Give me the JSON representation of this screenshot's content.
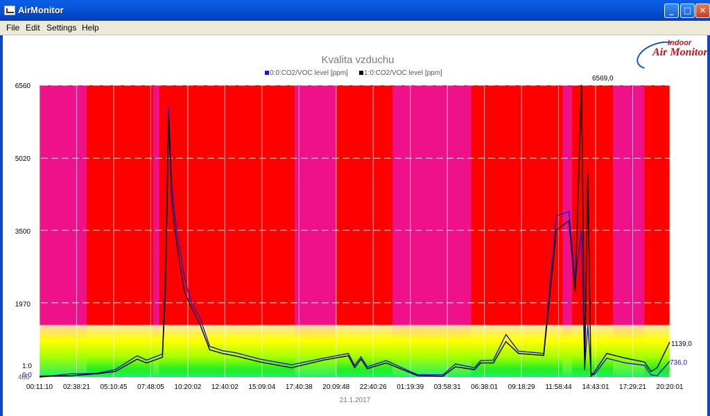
{
  "window": {
    "title": "AirMonitor"
  },
  "menu": [
    "File",
    "Edit",
    "Settings",
    "Help"
  ],
  "logo": {
    "small": "Indoor",
    "big": "Air Monitor"
  },
  "chart_data": {
    "type": "line",
    "title": "Kvalita vzduchu",
    "xlabel": "21.1.2017",
    "ylim": [
      400,
      6560
    ],
    "yticks": [
      "6560",
      "5020",
      "3500",
      "1970"
    ],
    "ytick_values": [
      6560,
      5020,
      3500,
      1970
    ],
    "xticks": [
      "00:11:10",
      "02:38:21",
      "05:10:45",
      "07:48:05",
      "10:20:02",
      "12:40:02",
      "15:09:04",
      "17:40:38",
      "20:09:48",
      "22:40:26",
      "01:19:39",
      "03:58:31",
      "06:38:01",
      "09:18:29",
      "11:58:44",
      "14:43:01",
      "17:29:21",
      "20:20:01"
    ],
    "legend": [
      "0:0:CO2/VOC level [ppm]",
      "1:0:CO2/VOC level [ppm]"
    ],
    "left_labels": [
      "1:0",
      "0:0",
      "400"
    ],
    "annotations": {
      "peak": "6569,0",
      "end_black": "1139,0",
      "end_blue": "736,0"
    },
    "colors": {
      "blue": "#1a14e0",
      "black": "#000000",
      "pink": "#ee1188",
      "red": "#ff0000"
    },
    "series": [
      {
        "name": "0:0:CO2/VOC level [ppm]",
        "x": [
          0,
          0.05,
          0.09,
          0.12,
          0.155,
          0.17,
          0.195,
          0.2,
          0.205,
          0.21,
          0.215,
          0.22,
          0.23,
          0.24,
          0.255,
          0.27,
          0.29,
          0.31,
          0.35,
          0.4,
          0.45,
          0.49,
          0.5,
          0.51,
          0.52,
          0.55,
          0.6,
          0.64,
          0.66,
          0.69,
          0.7,
          0.72,
          0.74,
          0.76,
          0.8,
          0.82,
          0.84,
          0.85,
          0.86,
          0.865,
          0.87,
          0.875,
          0.88,
          0.9,
          0.93,
          0.96,
          0.97,
          0.98,
          1.0
        ],
        "y": [
          400,
          470,
          480,
          560,
          850,
          760,
          890,
          2600,
          6100,
          4400,
          3800,
          3300,
          2500,
          2000,
          1640,
          1050,
          960,
          920,
          780,
          660,
          800,
          900,
          650,
          830,
          620,
          750,
          450,
          450,
          680,
          600,
          750,
          760,
          1300,
          950,
          900,
          3800,
          3900,
          2400,
          3500,
          600,
          1500,
          500,
          450,
          800,
          700,
          650,
          450,
          430,
          736
        ]
      },
      {
        "name": "1:0:CO2/VOC level [ppm]",
        "x": [
          0,
          0.05,
          0.09,
          0.12,
          0.155,
          0.17,
          0.195,
          0.2,
          0.205,
          0.21,
          0.215,
          0.22,
          0.23,
          0.24,
          0.255,
          0.27,
          0.29,
          0.31,
          0.35,
          0.4,
          0.45,
          0.49,
          0.5,
          0.51,
          0.52,
          0.55,
          0.6,
          0.64,
          0.66,
          0.69,
          0.7,
          0.72,
          0.74,
          0.76,
          0.8,
          0.82,
          0.84,
          0.85,
          0.86,
          0.865,
          0.87,
          0.875,
          0.88,
          0.9,
          0.93,
          0.96,
          0.97,
          0.98,
          1.0
        ],
        "y": [
          420,
          430,
          470,
          520,
          780,
          700,
          820,
          2300,
          5900,
          4100,
          3500,
          3000,
          2200,
          1900,
          1500,
          980,
          900,
          850,
          720,
          600,
          760,
          850,
          600,
          780,
          580,
          700,
          430,
          420,
          620,
          560,
          700,
          700,
          1150,
          900,
          860,
          3500,
          3700,
          2200,
          6569,
          550,
          4700,
          420,
          500,
          900,
          800,
          720,
          520,
          600,
          1139
        ]
      }
    ]
  }
}
